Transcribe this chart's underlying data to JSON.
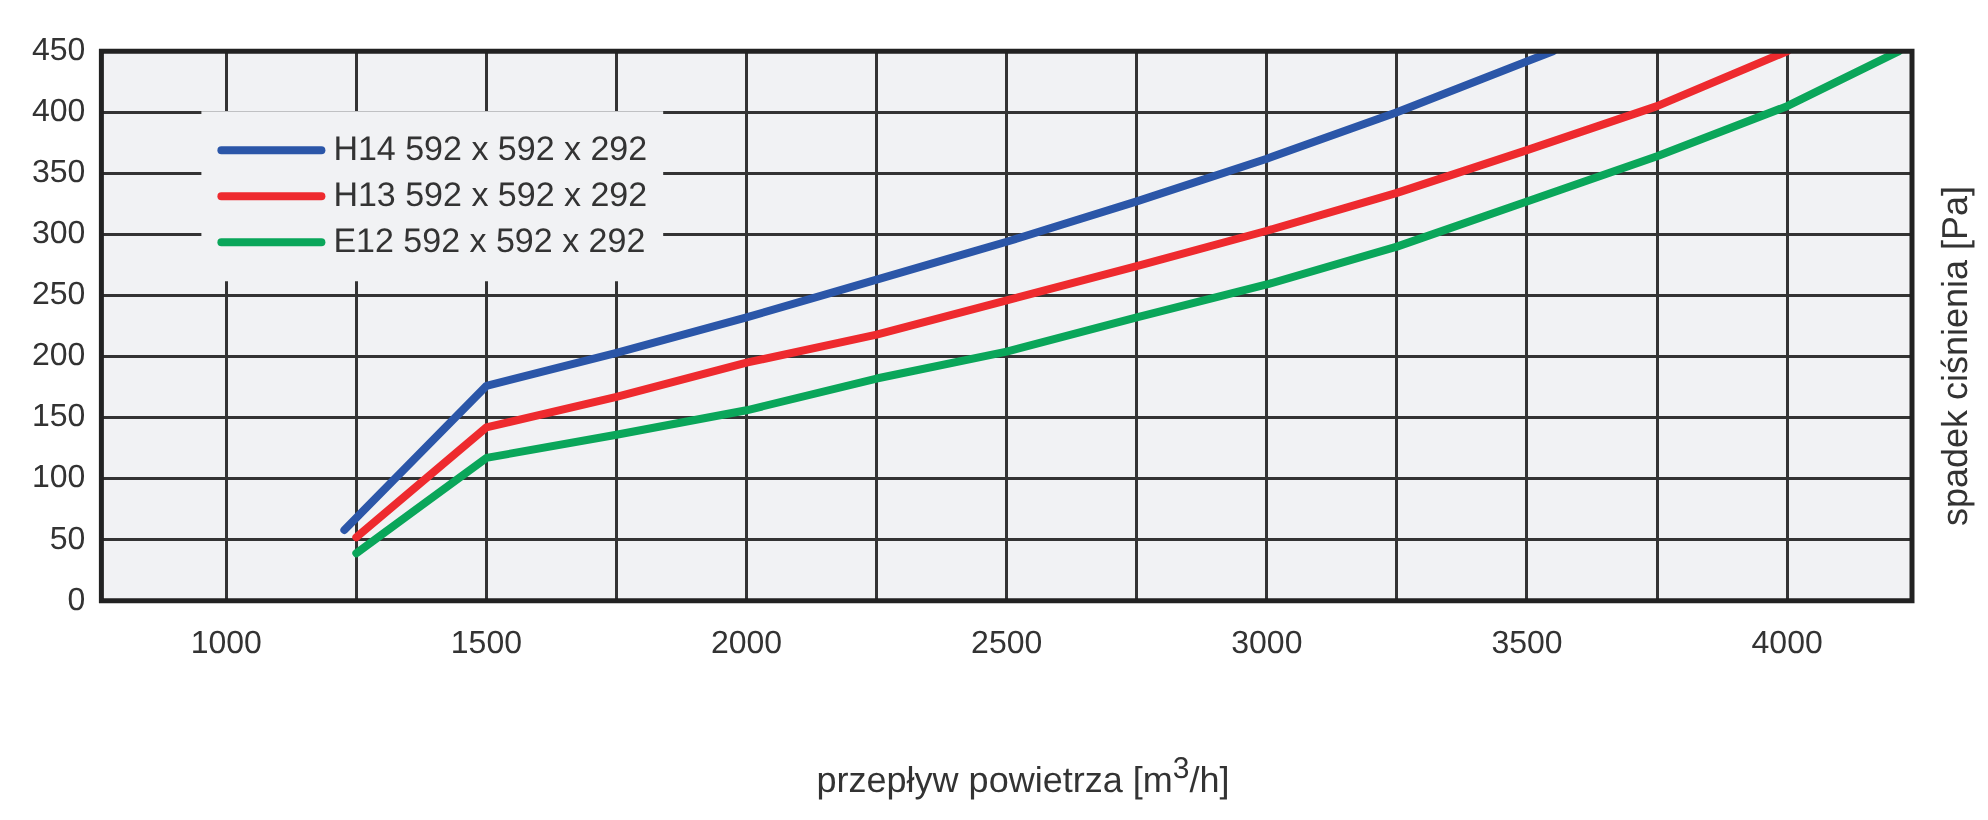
{
  "chart_data": {
    "type": "line",
    "xlabel": "przepływ powietrza [m$^{3}$/h]",
    "ylabel": "spadek ciśnienia [Pa]",
    "xlim": [
      760,
      4240
    ],
    "xticks": [
      1000,
      {
        "value": 1250,
        "label": null
      },
      1500,
      {
        "value": 1750,
        "label": null
      },
      2000,
      {
        "value": 2250,
        "label": null
      },
      2500,
      {
        "value": 2750,
        "label": null
      },
      3000,
      {
        "value": 3250,
        "label": null
      },
      3500,
      {
        "value": 3750,
        "label": null
      },
      4000
    ],
    "ylim": [
      0,
      450
    ],
    "yticks": [
      0,
      50,
      100,
      150,
      200,
      250,
      300,
      350,
      400,
      450
    ],
    "grid": true,
    "legend": "top left",
    "marker": "none",
    "line_style": "solid",
    "series": [
      {
        "name": "H14 592 x 592 x 292",
        "color": "#2b56a8",
        "x": [
          1227,
          1500,
          1750,
          2000,
          2250,
          2500,
          2750,
          3000,
          3250,
          3550
        ],
        "values": [
          58,
          176,
          203,
          232,
          263,
          294,
          327,
          362,
          400,
          450
        ]
      },
      {
        "name": "H13 592 x 592 x 292",
        "color": "#ee2a2e",
        "x": [
          1250,
          1500,
          1750,
          2000,
          2250,
          2500,
          2750,
          3000,
          3250,
          3500,
          3750,
          4000
        ],
        "values": [
          52,
          142,
          167,
          195,
          218,
          246,
          274,
          303,
          334,
          369,
          405,
          450
        ]
      },
      {
        "name": "E12 592 x 592 x 292",
        "color": "#0aa65a",
        "x": [
          1250,
          1500,
          1750,
          2000,
          2250,
          2500,
          2750,
          3000,
          3250,
          3500,
          3750,
          4000,
          4215
        ],
        "values": [
          39,
          117,
          136,
          156,
          182,
          204,
          232,
          259,
          290,
          327,
          364,
          405,
          450
        ]
      }
    ]
  }
}
